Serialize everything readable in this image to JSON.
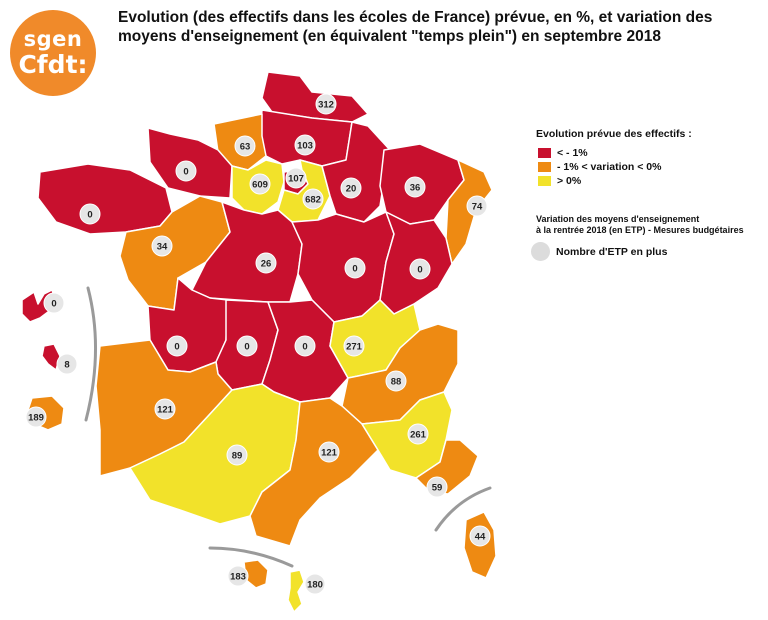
{
  "logo": {
    "line1": "sgen",
    "line2": "Cfdt:"
  },
  "title": "Evolution (des effectifs dans les écoles de France) prévue, en %, et variation des moyens d'enseignement (en équivalent \"temps plein\") en septembre 2018",
  "legend": {
    "title": "Evolution prévue des effectifs :",
    "items": [
      {
        "label": "< - 1%",
        "color": "#c8102e"
      },
      {
        "label": "- 1% < variation < 0%",
        "color": "#ee8a12"
      },
      {
        "label": "> 0%",
        "color": "#f2e22a"
      }
    ]
  },
  "moyens": {
    "line1": "Variation des moyens d'enseignement",
    "line2": "à la rentrée 2018 (en ETP) - Mesures budgétaires"
  },
  "etp_legend": {
    "label": "Nombre d'ETP en plus"
  },
  "regions": [
    {
      "id": "lille",
      "value": "312",
      "category": "red"
    },
    {
      "id": "amiens",
      "value": "103",
      "category": "red"
    },
    {
      "id": "rouen",
      "value": "63",
      "category": "orange"
    },
    {
      "id": "caen",
      "value": "0",
      "category": "red"
    },
    {
      "id": "rennes",
      "value": "0",
      "category": "red"
    },
    {
      "id": "nantes",
      "value": "34",
      "category": "orange"
    },
    {
      "id": "versailles",
      "value": "609",
      "category": "yellow"
    },
    {
      "id": "paris",
      "value": "107",
      "category": "red"
    },
    {
      "id": "creteil",
      "value": "682",
      "category": "yellow"
    },
    {
      "id": "reims",
      "value": "20",
      "category": "red"
    },
    {
      "id": "nancy-metz",
      "value": "36",
      "category": "red"
    },
    {
      "id": "strasbourg",
      "value": "74",
      "category": "orange"
    },
    {
      "id": "orleans-tours",
      "value": "26",
      "category": "red"
    },
    {
      "id": "dijon",
      "value": "0",
      "category": "red"
    },
    {
      "id": "besancon",
      "value": "0",
      "category": "red"
    },
    {
      "id": "poitiers",
      "value": "0",
      "category": "red"
    },
    {
      "id": "limoges",
      "value": "0",
      "category": "red"
    },
    {
      "id": "clermont",
      "value": "0",
      "category": "red"
    },
    {
      "id": "lyon",
      "value": "271",
      "category": "yellow"
    },
    {
      "id": "grenoble",
      "value": "88",
      "category": "orange"
    },
    {
      "id": "bordeaux",
      "value": "121",
      "category": "orange"
    },
    {
      "id": "toulouse",
      "value": "89",
      "category": "yellow"
    },
    {
      "id": "montpellier",
      "value": "121",
      "category": "orange"
    },
    {
      "id": "aix-marseille",
      "value": "261",
      "category": "yellow"
    },
    {
      "id": "nice",
      "value": "59",
      "category": "orange"
    },
    {
      "id": "corse",
      "value": "44",
      "category": "orange"
    },
    {
      "id": "guadeloupe",
      "value": "0",
      "category": "red"
    },
    {
      "id": "martinique",
      "value": "8",
      "category": "red"
    },
    {
      "id": "reunion",
      "value": "189",
      "category": "orange"
    },
    {
      "id": "guyane",
      "value": "183",
      "category": "orange"
    },
    {
      "id": "mayotte",
      "value": "180",
      "category": "yellow"
    }
  ]
}
